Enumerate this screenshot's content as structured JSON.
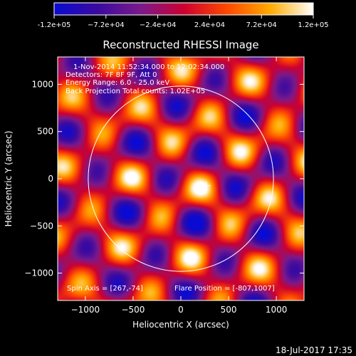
{
  "chart_data": {
    "type": "heatmap",
    "title": "Reconstructed RHESSI Image",
    "xlabel": "Heliocentric X (arcsec)",
    "ylabel": "Heliocentric Y (arcsec)",
    "xlim": [
      -1290,
      1290
    ],
    "ylim": [
      -1290,
      1290
    ],
    "xticks": [
      -1000,
      -500,
      0,
      500,
      1000
    ],
    "yticks": [
      -1000,
      -500,
      0,
      500,
      1000
    ],
    "colorbar": {
      "ticks": [
        "-1.2e+05",
        "−7.2e+04",
        "−2.4e+04",
        "2.4e+04",
        "7.2e+04",
        "1.2e+05"
      ],
      "min": -120000,
      "max": 120000,
      "colors": [
        "#0a0ad2",
        "#3a0aa0",
        "#7a1a8c",
        "#cc0030",
        "#ff4800",
        "#ffaa00",
        "#ffffff"
      ]
    },
    "annotations": [
      "1-Nov-2014 11:52:34.000 to 12:02:34.000",
      "Detectors: 7F 8F 9F, Att 0",
      "Energy Range: 6.0 - 25.0 keV",
      "Back Projection   Total counts: 1.02E+05"
    ],
    "spin_axis_text": "Spin Axis = [267,-74]",
    "flare_position_text": "Flare Position = [-807,1007]",
    "solar_disk_radius_arcsec": 970,
    "crosshair_arcsec": [
      267,
      -74
    ],
    "grid": false
  },
  "footer": {
    "timestamp": "18-Jul-2017 17:35"
  }
}
